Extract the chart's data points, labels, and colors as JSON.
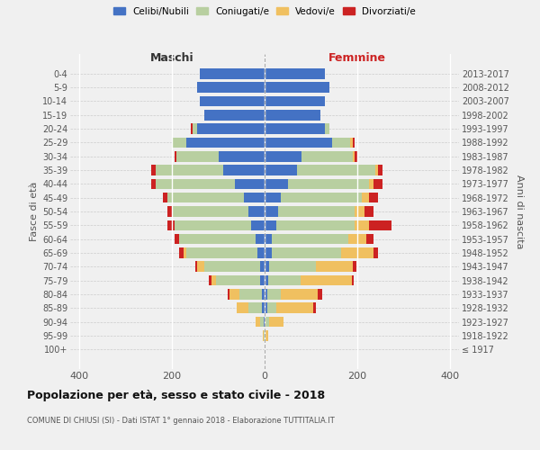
{
  "age_groups": [
    "100+",
    "95-99",
    "90-94",
    "85-89",
    "80-84",
    "75-79",
    "70-74",
    "65-69",
    "60-64",
    "55-59",
    "50-54",
    "45-49",
    "40-44",
    "35-39",
    "30-34",
    "25-29",
    "20-24",
    "15-19",
    "10-14",
    "5-9",
    "0-4"
  ],
  "birth_years": [
    "≤ 1917",
    "1918-1922",
    "1923-1927",
    "1928-1932",
    "1933-1937",
    "1938-1942",
    "1943-1947",
    "1948-1952",
    "1953-1957",
    "1958-1962",
    "1963-1967",
    "1968-1972",
    "1973-1977",
    "1978-1982",
    "1983-1987",
    "1988-1992",
    "1993-1997",
    "1998-2002",
    "2003-2007",
    "2008-2012",
    "2013-2017"
  ],
  "maschi_celibi": [
    0,
    0,
    2,
    5,
    5,
    10,
    10,
    15,
    20,
    30,
    35,
    45,
    65,
    90,
    100,
    170,
    145,
    130,
    140,
    145,
    140
  ],
  "maschi_coniugati": [
    0,
    2,
    8,
    30,
    50,
    95,
    120,
    155,
    165,
    165,
    165,
    165,
    170,
    145,
    90,
    30,
    10,
    0,
    0,
    0,
    0
  ],
  "maschi_vedovi": [
    0,
    2,
    10,
    25,
    20,
    10,
    15,
    5,
    0,
    0,
    0,
    0,
    0,
    0,
    0,
    0,
    0,
    0,
    0,
    0,
    0
  ],
  "maschi_divorziati": [
    0,
    0,
    0,
    0,
    5,
    5,
    5,
    10,
    10,
    15,
    10,
    10,
    10,
    10,
    5,
    0,
    5,
    0,
    0,
    0,
    0
  ],
  "femmine_nubili": [
    0,
    0,
    2,
    5,
    5,
    8,
    10,
    15,
    15,
    25,
    30,
    35,
    50,
    70,
    80,
    145,
    130,
    120,
    130,
    140,
    130
  ],
  "femmine_coniugate": [
    0,
    2,
    8,
    20,
    30,
    70,
    100,
    150,
    165,
    170,
    165,
    175,
    175,
    170,
    110,
    40,
    10,
    0,
    0,
    0,
    0
  ],
  "femmine_vedove": [
    0,
    5,
    30,
    80,
    80,
    110,
    80,
    70,
    40,
    30,
    20,
    15,
    10,
    5,
    5,
    5,
    0,
    0,
    0,
    0,
    0
  ],
  "femmine_divorziate": [
    0,
    0,
    0,
    5,
    10,
    5,
    8,
    10,
    15,
    50,
    20,
    20,
    20,
    10,
    5,
    5,
    0,
    0,
    0,
    0,
    0
  ],
  "color_celibi": "#4472c4",
  "color_coniugati": "#b8cfa0",
  "color_vedovi": "#f0c060",
  "color_divorziati": "#cc2222",
  "legend_labels": [
    "Celibi/Nubili",
    "Coniugati/e",
    "Vedovi/e",
    "Divorziati/e"
  ],
  "xlim": 420,
  "title": "Popolazione per età, sesso e stato civile - 2018",
  "subtitle": "COMUNE DI CHIUSI (SI) - Dati ISTAT 1° gennaio 2018 - Elaborazione TUTTITALIA.IT",
  "label_maschi": "Maschi",
  "label_femmine": "Femmine",
  "ylabel_left": "Fasce di età",
  "ylabel_right": "Anni di nascita",
  "background_color": "#f0f0f0"
}
